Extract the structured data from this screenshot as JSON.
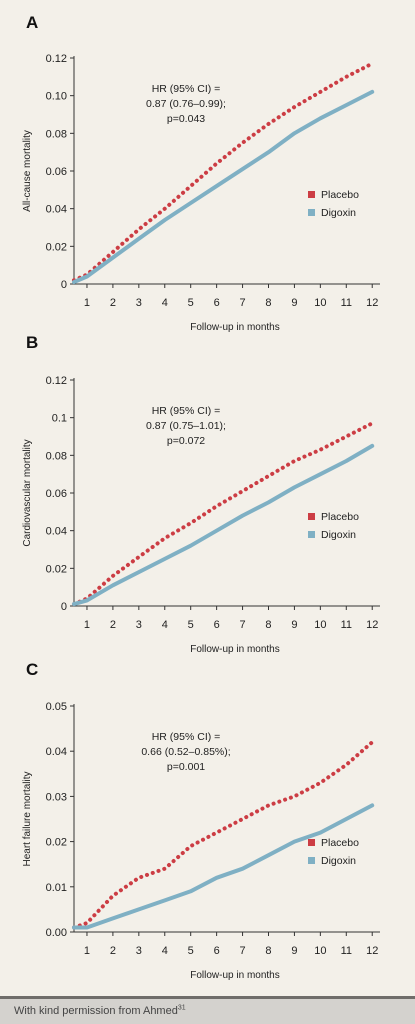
{
  "footer": {
    "text": "With kind permission from Ahmed",
    "ref": "31"
  },
  "colors": {
    "placebo": "#cc3d44",
    "digoxin": "#7fb0c4"
  },
  "chart_data": [
    {
      "type": "line",
      "panel_label": "A",
      "xlabel": "Follow-up in months",
      "ylabel": "All-cause mortality",
      "xlim": [
        0.5,
        12.3
      ],
      "ylim": [
        0,
        0.12
      ],
      "x_ticks": [
        "1",
        "2",
        "3",
        "4",
        "5",
        "6",
        "7",
        "8",
        "9",
        "10",
        "11",
        "12"
      ],
      "y_ticks": [
        "0",
        "0.02",
        "0.04",
        "0.06",
        "0.08",
        "0.10",
        "0.12"
      ],
      "annotation": [
        "HR (95% CI) =",
        "0.87 (0.76–0.99);",
        "p=0.043"
      ],
      "legend": [
        "Placebo",
        "Digoxin"
      ],
      "series": [
        {
          "name": "Placebo",
          "style": "dotted",
          "color": "#cc3d44",
          "x": [
            0.5,
            1,
            2,
            3,
            4,
            5,
            6,
            7,
            8,
            9,
            10,
            11,
            12
          ],
          "y": [
            0.002,
            0.005,
            0.017,
            0.029,
            0.04,
            0.052,
            0.064,
            0.075,
            0.085,
            0.094,
            0.102,
            0.11,
            0.117
          ]
        },
        {
          "name": "Digoxin",
          "style": "solid",
          "color": "#7fb0c4",
          "x": [
            0.5,
            1,
            2,
            3,
            4,
            5,
            6,
            7,
            8,
            9,
            10,
            11,
            12
          ],
          "y": [
            0.001,
            0.004,
            0.014,
            0.024,
            0.034,
            0.043,
            0.052,
            0.061,
            0.07,
            0.08,
            0.088,
            0.095,
            0.102
          ]
        }
      ]
    },
    {
      "type": "line",
      "panel_label": "B",
      "xlabel": "Follow-up in months",
      "ylabel": "Cardiovascular mortality",
      "xlim": [
        0.5,
        12.3
      ],
      "ylim": [
        0,
        0.12
      ],
      "x_ticks": [
        "1",
        "2",
        "3",
        "4",
        "5",
        "6",
        "7",
        "8",
        "9",
        "10",
        "11",
        "12"
      ],
      "y_ticks": [
        "0",
        "0.02",
        "0.04",
        "0.06",
        "0.08",
        "0.1",
        "0.12"
      ],
      "annotation": [
        "HR (95% CI) =",
        "0.87 (0.75–1.01);",
        "p=0.072"
      ],
      "legend": [
        "Placebo",
        "Digoxin"
      ],
      "series": [
        {
          "name": "Placebo",
          "style": "dotted",
          "color": "#cc3d44",
          "x": [
            0.5,
            1,
            2,
            3,
            4,
            5,
            6,
            7,
            8,
            9,
            10,
            11,
            12
          ],
          "y": [
            0.001,
            0.004,
            0.016,
            0.026,
            0.036,
            0.044,
            0.053,
            0.061,
            0.069,
            0.077,
            0.083,
            0.09,
            0.097
          ]
        },
        {
          "name": "Digoxin",
          "style": "solid",
          "color": "#7fb0c4",
          "x": [
            0.5,
            1,
            2,
            3,
            4,
            5,
            6,
            7,
            8,
            9,
            10,
            11,
            12
          ],
          "y": [
            0.001,
            0.003,
            0.011,
            0.018,
            0.025,
            0.032,
            0.04,
            0.048,
            0.055,
            0.063,
            0.07,
            0.077,
            0.085
          ]
        }
      ]
    },
    {
      "type": "line",
      "panel_label": "C",
      "xlabel": "Follow-up in months",
      "ylabel": "Heart failure mortality",
      "xlim": [
        0.5,
        12.3
      ],
      "ylim": [
        0,
        0.05
      ],
      "x_ticks": [
        "1",
        "2",
        "3",
        "4",
        "5",
        "6",
        "7",
        "8",
        "9",
        "10",
        "11",
        "12"
      ],
      "y_ticks": [
        "0.00",
        "0.01",
        "0.02",
        "0.03",
        "0.04",
        "0.05"
      ],
      "annotation": [
        "HR (95% CI) =",
        "0.66 (0.52–0.85%);",
        "p=0.001"
      ],
      "legend": [
        "Placebo",
        "Digoxin"
      ],
      "series": [
        {
          "name": "Placebo",
          "style": "dotted",
          "color": "#cc3d44",
          "x": [
            0.5,
            1,
            2,
            3,
            4,
            5,
            6,
            7,
            8,
            9,
            10,
            11,
            12
          ],
          "y": [
            0.001,
            0.002,
            0.008,
            0.012,
            0.014,
            0.019,
            0.022,
            0.025,
            0.028,
            0.03,
            0.033,
            0.037,
            0.042
          ]
        },
        {
          "name": "Digoxin",
          "style": "solid",
          "color": "#7fb0c4",
          "x": [
            0.5,
            1,
            2,
            3,
            4,
            5,
            6,
            7,
            8,
            9,
            10,
            11,
            12
          ],
          "y": [
            0.001,
            0.001,
            0.003,
            0.005,
            0.007,
            0.009,
            0.012,
            0.014,
            0.017,
            0.02,
            0.022,
            0.025,
            0.028
          ]
        }
      ]
    }
  ]
}
